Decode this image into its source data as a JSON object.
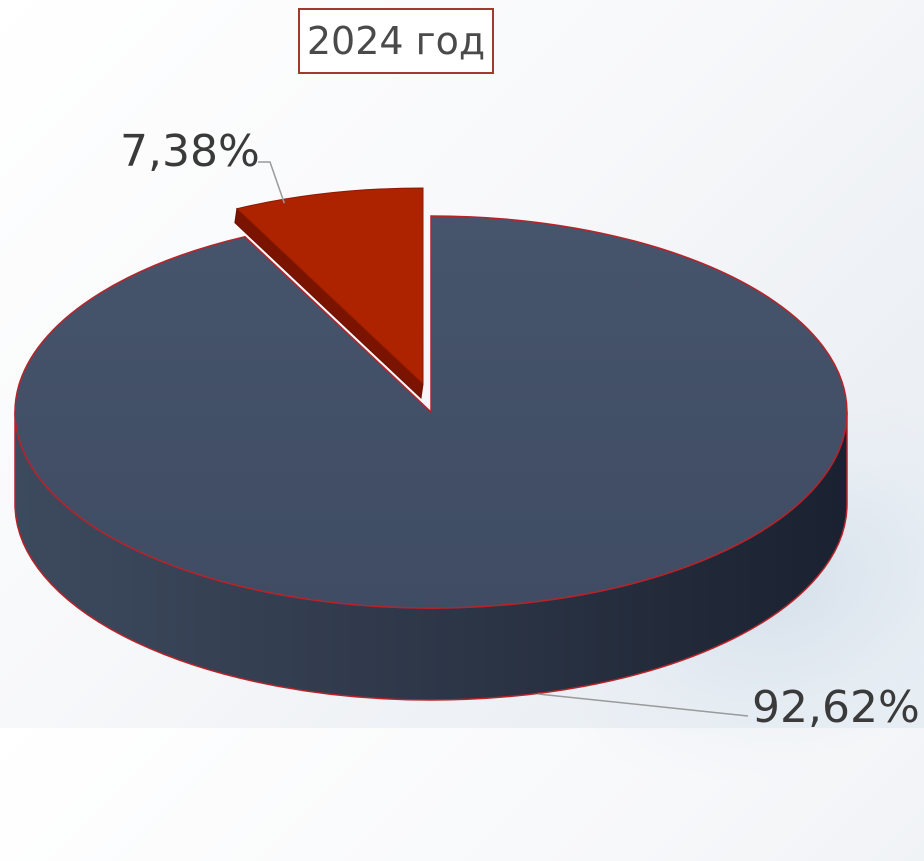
{
  "chart_data": {
    "type": "pie",
    "style": "3d-exploded",
    "title": "2024 год",
    "categories": [
      "slice-1",
      "slice-2"
    ],
    "values": [
      92.62,
      7.38
    ],
    "labels": [
      "92,62%",
      "7,38%"
    ],
    "colors": [
      "#435169",
      "#ad2300"
    ],
    "edge_color": "#b8232a",
    "legend": "none"
  }
}
